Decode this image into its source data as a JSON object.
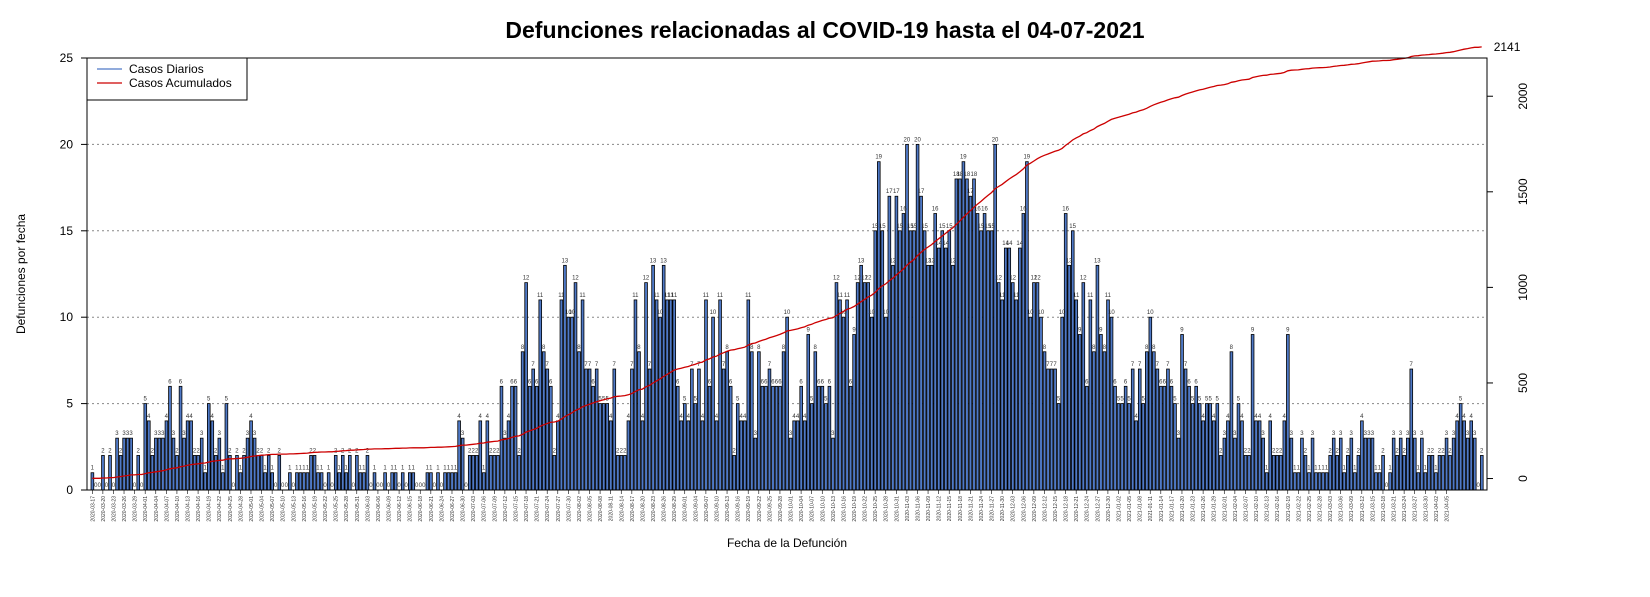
{
  "chart_data": {
    "type": "bar",
    "title": "Defunciones relacionadas al COVID-19 hasta el 04-07-2021",
    "xlabel": "Fecha de la Defunción",
    "ylabel": "Defunciones por fecha",
    "ylim": [
      0,
      25
    ],
    "yticks": [
      0,
      5,
      10,
      15,
      20,
      25
    ],
    "y2lim": [
      0,
      2200
    ],
    "y2ticks": [
      0,
      500,
      1000,
      1500,
      2000
    ],
    "grid": "horizontal dotted",
    "legend_position": "top-left",
    "bar_color": "#4f79c6",
    "line_color": "#cc0000",
    "start_date": "2020-03-17",
    "x_tick_dates": [
      "2020-03-17",
      "2020-03-20",
      "2020-03-23",
      "2020-03-26",
      "2020-03-29",
      "2020-04-01",
      "2020-04-04",
      "2020-04-07",
      "2020-04-10",
      "2020-04-13",
      "2020-04-16",
      "2020-04-19",
      "2020-04-22",
      "2020-04-25",
      "2020-04-28",
      "2020-05-01",
      "2020-05-04",
      "2020-05-07",
      "2020-05-10",
      "2020-05-13",
      "2020-05-16",
      "2020-05-19",
      "2020-05-22",
      "2020-05-25",
      "2020-05-28",
      "2020-05-31",
      "2020-06-03",
      "2020-06-06",
      "2020-06-09",
      "2020-06-12",
      "2020-06-15",
      "2020-06-18",
      "2020-06-21",
      "2020-06-24",
      "2020-06-27",
      "2020-06-30",
      "2020-07-03",
      "2020-07-06",
      "2020-07-09",
      "2020-07-12",
      "2020-07-15",
      "2020-07-18",
      "2020-07-21",
      "2020-07-24",
      "2020-07-27",
      "2020-07-30",
      "2020-08-02",
      "2020-08-05",
      "2020-08-08",
      "2020-08-11",
      "2020-08-14",
      "2020-08-17",
      "2020-08-20",
      "2020-08-23",
      "2020-08-26",
      "2020-08-29",
      "2020-09-01",
      "2020-09-04",
      "2020-09-07",
      "2020-09-10",
      "2020-09-13",
      "2020-09-16",
      "2020-09-19",
      "2020-09-22",
      "2020-09-25",
      "2020-09-28",
      "2020-10-01",
      "2020-10-04",
      "2020-10-07",
      "2020-10-10",
      "2020-10-13",
      "2020-10-16",
      "2020-10-19",
      "2020-10-22",
      "2020-10-25",
      "2020-10-28",
      "2020-10-31",
      "2020-11-03",
      "2020-11-06",
      "2020-11-09",
      "2020-11-12",
      "2020-11-15",
      "2020-11-18",
      "2020-11-21",
      "2020-11-24",
      "2020-11-27",
      "2020-11-30",
      "2020-12-03",
      "2020-12-06",
      "2020-12-09",
      "2020-12-12",
      "2020-12-15",
      "2020-12-18",
      "2020-12-21",
      "2020-12-24",
      "2020-12-27",
      "2020-12-30",
      "2021-01-02",
      "2021-01-05",
      "2021-01-08",
      "2021-01-11",
      "2021-01-14",
      "2021-01-17",
      "2021-01-20",
      "2021-01-23",
      "2021-01-26",
      "2021-01-29",
      "2021-02-01",
      "2021-02-04",
      "2021-02-07",
      "2021-02-10",
      "2021-02-13",
      "2021-02-16",
      "2021-02-19",
      "2021-02-22",
      "2021-02-25",
      "2021-02-28",
      "2021-03-03",
      "2021-03-06",
      "2021-03-09",
      "2021-03-12",
      "2021-03-15",
      "2021-03-18",
      "2021-03-21",
      "2021-03-24",
      "2021-03-27",
      "2021-03-30",
      "2021-04-02",
      "2021-04-05"
    ],
    "series": [
      {
        "name": "Casos Diarios",
        "type": "bar",
        "values": [
          1,
          0,
          0,
          2,
          0,
          2,
          0,
          3,
          2,
          3,
          3,
          3,
          0,
          2,
          0,
          5,
          4,
          2,
          3,
          3,
          3,
          4,
          6,
          3,
          2,
          6,
          3,
          4,
          4,
          2,
          2,
          3,
          1,
          5,
          4,
          2,
          3,
          1,
          5,
          2,
          0,
          2,
          1,
          2,
          3,
          4,
          3,
          2,
          2,
          1,
          2,
          1,
          0,
          2,
          0,
          0,
          1,
          0,
          1,
          1,
          1,
          1,
          2,
          2,
          1,
          1,
          0,
          1,
          0,
          2,
          1,
          2,
          1,
          2,
          0,
          2,
          1,
          1,
          2,
          0,
          1,
          0,
          0,
          1,
          0,
          1,
          1,
          0,
          1,
          0,
          1,
          1,
          0,
          0,
          0,
          1,
          1,
          0,
          1,
          0,
          1,
          1,
          1,
          1,
          4,
          3,
          0,
          2,
          2,
          2,
          4,
          1,
          4,
          2,
          2,
          2,
          6,
          3,
          4,
          6,
          6,
          2,
          8,
          12,
          6,
          7,
          6,
          11,
          8,
          7,
          6,
          2,
          4,
          11,
          13,
          10,
          10,
          12,
          8,
          11,
          7,
          7,
          6,
          7,
          5,
          5,
          5,
          4,
          7,
          2,
          2,
          2,
          4,
          7,
          11,
          8,
          4,
          12,
          7,
          13,
          11,
          10,
          13,
          11,
          11,
          11,
          6,
          4,
          5,
          4,
          7,
          5,
          7,
          4,
          11,
          6,
          10,
          4,
          11,
          7,
          8,
          6,
          2,
          5,
          4,
          4,
          11,
          8,
          3,
          8,
          6,
          6,
          7,
          6,
          6,
          6,
          8,
          10,
          3,
          4,
          4,
          6,
          4,
          9,
          5,
          8,
          6,
          6,
          5,
          6,
          3,
          12,
          11,
          10,
          11,
          6,
          9,
          12,
          13,
          12,
          12,
          10,
          15,
          19,
          15,
          10,
          17,
          13,
          17,
          15,
          16,
          20,
          15,
          15,
          20,
          17,
          15,
          13,
          13,
          16,
          14,
          15,
          14,
          15,
          13,
          18,
          18,
          19,
          18,
          17,
          18,
          16,
          15,
          16,
          15,
          15,
          20,
          12,
          11,
          14,
          14,
          12,
          11,
          14,
          16,
          19,
          10,
          12,
          12,
          10,
          8,
          7,
          7,
          7,
          5,
          10,
          16,
          13,
          15,
          11,
          9,
          12,
          6,
          11,
          8,
          13,
          9,
          8,
          11,
          10,
          6,
          5,
          5,
          6,
          5,
          7,
          4,
          7,
          5,
          8,
          10,
          8,
          7,
          6,
          6,
          7,
          6,
          5,
          3,
          9,
          7,
          6,
          5,
          6,
          5,
          4,
          5,
          5,
          4,
          5,
          2,
          3,
          4,
          8,
          3,
          5,
          4,
          2,
          2,
          9,
          4,
          4,
          3,
          1,
          4,
          2,
          2,
          2,
          4,
          9,
          3,
          1,
          1,
          3,
          2,
          1,
          3,
          1,
          1,
          1,
          1,
          2,
          3,
          2,
          3,
          1,
          2,
          3,
          1,
          2,
          4,
          3,
          3,
          3,
          1,
          1,
          2,
          0,
          1,
          3,
          2,
          3,
          2,
          3,
          7,
          3,
          1,
          3,
          1,
          2,
          2,
          1,
          2,
          2,
          3,
          2,
          3,
          4,
          5,
          4,
          3,
          4,
          3,
          0,
          2
        ]
      },
      {
        "name": "Casos Acumulados",
        "type": "line",
        "note_final_value": 2141
      }
    ],
    "end_label": "2141"
  },
  "legend": {
    "items": [
      {
        "label": "Casos Diarios",
        "color": "#4f79c6"
      },
      {
        "label": "Casos Acumulados",
        "color": "#cc0000"
      }
    ]
  }
}
